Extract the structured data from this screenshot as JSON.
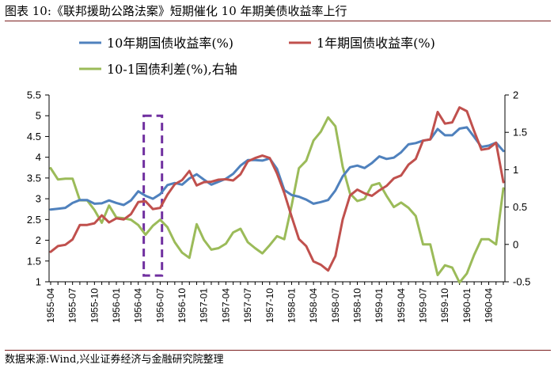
{
  "header": {
    "title": "图表 10:《联邦援助公路法案》短期催化 10 年期美债收益率上行"
  },
  "footer": {
    "source": "数据来源:Wind,兴业证券经济与金融研究院整理"
  },
  "chart_data": {
    "type": "line",
    "categories": [
      "1955-04",
      "1955-05",
      "1955-06",
      "1955-07",
      "1955-08",
      "1955-09",
      "1955-10",
      "1955-11",
      "1955-12",
      "1956-01",
      "1956-02",
      "1956-03",
      "1956-04",
      "1956-05",
      "1956-06",
      "1956-07",
      "1956-08",
      "1956-09",
      "1956-10",
      "1956-11",
      "1956-12",
      "1957-01",
      "1957-02",
      "1957-03",
      "1957-04",
      "1957-05",
      "1957-06",
      "1957-07",
      "1957-08",
      "1957-09",
      "1957-10",
      "1957-11",
      "1957-12",
      "1958-01",
      "1958-02",
      "1958-03",
      "1958-04",
      "1958-05",
      "1958-06",
      "1958-07",
      "1958-08",
      "1958-09",
      "1958-10",
      "1958-11",
      "1958-12",
      "1959-01",
      "1959-02",
      "1959-03",
      "1959-04",
      "1959-05",
      "1959-06",
      "1959-07",
      "1959-08",
      "1959-09",
      "1959-10",
      "1959-11",
      "1959-12",
      "1960-01",
      "1960-02",
      "1960-03",
      "1960-04",
      "1960-05",
      "1960-06"
    ],
    "x_tick_labels": [
      "1955-04",
      "1955-07",
      "1955-10",
      "1956-01",
      "1956-04",
      "1956-07",
      "1956-10",
      "1957-01",
      "1957-04",
      "1957-07",
      "1957-10",
      "1958-01",
      "1958-04",
      "1958-07",
      "1958-10",
      "1959-01",
      "1959-04",
      "1959-07",
      "1959-10",
      "1960-01",
      "1960-04"
    ],
    "series": [
      {
        "name": "10年期国债收益率(%)",
        "axis": "left",
        "color": "#4f81bd",
        "values": [
          2.74,
          2.76,
          2.78,
          2.9,
          2.97,
          2.97,
          2.88,
          2.89,
          2.96,
          2.9,
          2.85,
          2.96,
          3.18,
          3.07,
          3.0,
          3.11,
          3.33,
          3.38,
          3.34,
          3.49,
          3.59,
          3.46,
          3.34,
          3.41,
          3.48,
          3.6,
          3.8,
          3.93,
          3.93,
          3.92,
          3.97,
          3.72,
          3.21,
          3.09,
          3.05,
          2.98,
          2.88,
          2.92,
          2.97,
          3.2,
          3.54,
          3.76,
          3.8,
          3.74,
          3.86,
          4.02,
          3.96,
          3.99,
          4.12,
          4.31,
          4.34,
          4.4,
          4.43,
          4.68,
          4.53,
          4.53,
          4.69,
          4.72,
          4.49,
          4.25,
          4.28,
          4.35,
          4.15
        ]
      },
      {
        "name": "1年期国债收益率(%)",
        "axis": "left",
        "color": "#c0504d",
        "values": [
          1.72,
          1.86,
          1.89,
          2.02,
          2.37,
          2.37,
          2.41,
          2.6,
          2.43,
          2.53,
          2.5,
          2.63,
          2.92,
          2.94,
          2.75,
          2.78,
          3.1,
          3.35,
          3.45,
          3.67,
          3.32,
          3.4,
          3.41,
          3.46,
          3.47,
          3.44,
          3.59,
          3.9,
          3.98,
          4.04,
          3.98,
          3.61,
          3.14,
          2.57,
          2.03,
          1.86,
          1.49,
          1.41,
          1.27,
          1.62,
          2.5,
          3.08,
          3.22,
          3.13,
          3.07,
          3.2,
          3.31,
          3.49,
          3.56,
          3.82,
          3.96,
          4.4,
          4.43,
          5.09,
          4.81,
          4.84,
          5.2,
          5.11,
          4.63,
          4.18,
          4.21,
          4.35,
          3.4
        ]
      },
      {
        "name": "10-1国债利差(%),右轴",
        "axis": "right",
        "color": "#9bbb59",
        "values": [
          1.02,
          0.87,
          0.88,
          0.88,
          0.59,
          0.59,
          0.46,
          0.29,
          0.52,
          0.36,
          0.35,
          0.33,
          0.26,
          0.13,
          0.25,
          0.33,
          0.23,
          0.03,
          -0.11,
          -0.18,
          0.27,
          0.06,
          -0.07,
          -0.05,
          0.01,
          0.16,
          0.21,
          0.03,
          -0.05,
          -0.12,
          -0.01,
          0.11,
          0.07,
          0.52,
          1.02,
          1.12,
          1.39,
          1.51,
          1.7,
          1.58,
          1.04,
          0.68,
          0.58,
          0.61,
          0.79,
          0.82,
          0.65,
          0.5,
          0.56,
          0.49,
          0.38,
          0.0,
          0.0,
          -0.41,
          -0.28,
          -0.31,
          -0.51,
          -0.39,
          -0.14,
          0.07,
          0.07,
          0.0,
          0.75
        ]
      }
    ],
    "y_left": {
      "min": 1,
      "max": 5.5,
      "ticks": [
        "1",
        "1.5",
        "2",
        "2.5",
        "3",
        "3.5",
        "4",
        "4.5",
        "5",
        "5.5"
      ]
    },
    "y_right": {
      "min": -0.5,
      "max": 2,
      "ticks": [
        "-0.5",
        "0",
        "0.5",
        "1",
        "1.5",
        "2"
      ]
    },
    "highlight": {
      "from": "1956-05",
      "to": "1956-07",
      "color": "#7030a0",
      "style": "dashed"
    },
    "legend_placement": "top",
    "grid": false
  }
}
